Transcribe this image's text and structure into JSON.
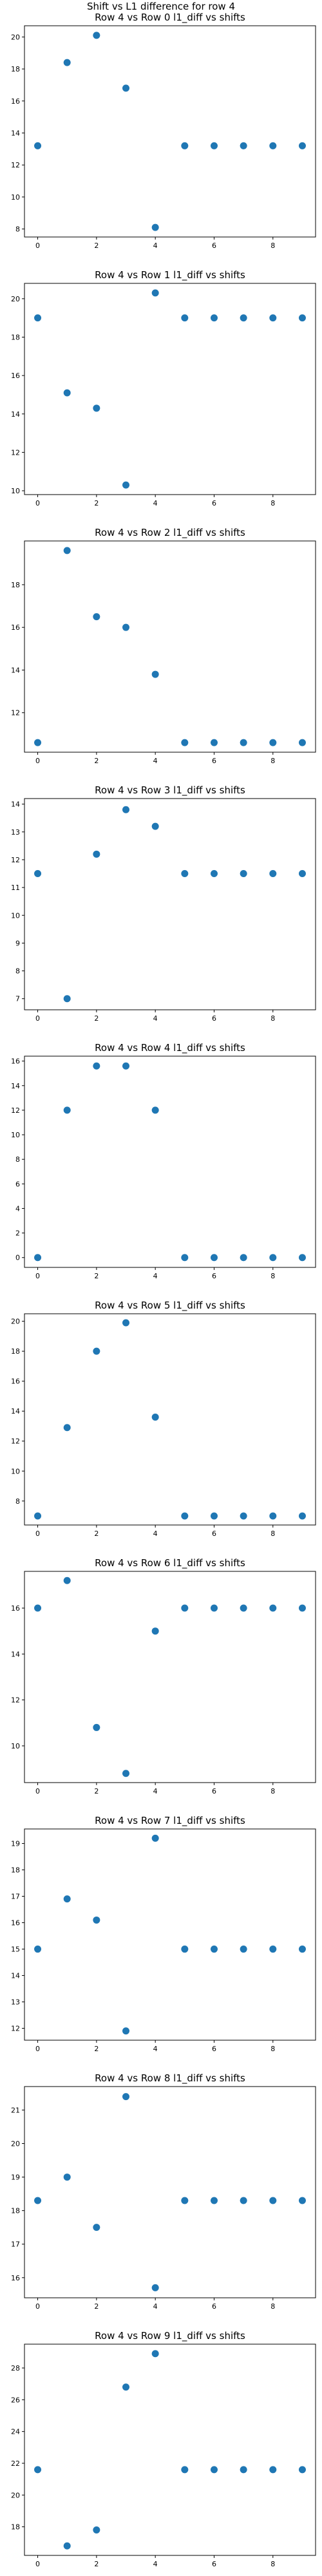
{
  "figure": {
    "suptitle": "Shift vs L1 difference for row 4",
    "marker_color": "#1f77b4"
  },
  "chart_data": [
    {
      "type": "scatter",
      "title": "Row 4 vs Row 0 l1_diff vs shifts",
      "x": [
        0,
        1,
        2,
        3,
        4,
        5,
        6,
        7,
        8,
        9
      ],
      "y": [
        13.2,
        18.4,
        20.1,
        16.8,
        8.1,
        13.2,
        13.2,
        13.2,
        13.2,
        13.2
      ],
      "xlim": [
        -0.45,
        9.45
      ],
      "ylim": [
        7.5,
        20.7
      ],
      "xticks": [
        0,
        2,
        4,
        6,
        8
      ],
      "yticks": [
        8,
        10,
        12,
        14,
        16,
        18,
        20
      ]
    },
    {
      "type": "scatter",
      "title": "Row 4 vs Row 1 l1_diff vs shifts",
      "x": [
        0,
        1,
        2,
        3,
        4,
        5,
        6,
        7,
        8,
        9
      ],
      "y": [
        19.0,
        15.1,
        14.3,
        10.3,
        20.3,
        19.0,
        19.0,
        19.0,
        19.0,
        19.0
      ],
      "xlim": [
        -0.45,
        9.45
      ],
      "ylim": [
        9.8,
        20.8
      ],
      "xticks": [
        0,
        2,
        4,
        6,
        8
      ],
      "yticks": [
        10,
        12,
        14,
        16,
        18,
        20
      ]
    },
    {
      "type": "scatter",
      "title": "Row 4 vs Row 2 l1_diff vs shifts",
      "x": [
        0,
        1,
        2,
        3,
        4,
        5,
        6,
        7,
        8,
        9
      ],
      "y": [
        10.6,
        19.6,
        16.5,
        16.0,
        13.8,
        10.6,
        10.6,
        10.6,
        10.6,
        10.6
      ],
      "xlim": [
        -0.45,
        9.45
      ],
      "ylim": [
        10.15,
        20.05
      ],
      "xticks": [
        0,
        2,
        4,
        6,
        8
      ],
      "yticks": [
        12,
        14,
        16,
        18
      ]
    },
    {
      "type": "scatter",
      "title": "Row 4 vs Row 3 l1_diff vs shifts",
      "x": [
        0,
        1,
        2,
        3,
        4,
        5,
        6,
        7,
        8,
        9
      ],
      "y": [
        11.5,
        7.0,
        12.2,
        13.8,
        13.2,
        11.5,
        11.5,
        11.5,
        11.5,
        11.5
      ],
      "xlim": [
        -0.45,
        9.45
      ],
      "ylim": [
        6.6,
        14.2
      ],
      "xticks": [
        0,
        2,
        4,
        6,
        8
      ],
      "yticks": [
        7,
        8,
        9,
        10,
        11,
        12,
        13,
        14
      ]
    },
    {
      "type": "scatter",
      "title": "Row 4 vs Row 4 l1_diff vs shifts",
      "x": [
        0,
        1,
        2,
        3,
        4,
        5,
        6,
        7,
        8,
        9
      ],
      "y": [
        0,
        12.0,
        15.6,
        15.6,
        12.0,
        0,
        0,
        0,
        0,
        0
      ],
      "xlim": [
        -0.45,
        9.45
      ],
      "ylim": [
        -0.8,
        16.4
      ],
      "xticks": [
        0,
        2,
        4,
        6,
        8
      ],
      "yticks": [
        0,
        2,
        4,
        6,
        8,
        10,
        12,
        14,
        16
      ]
    },
    {
      "type": "scatter",
      "title": "Row 4 vs Row 5 l1_diff vs shifts",
      "x": [
        0,
        1,
        2,
        3,
        4,
        5,
        6,
        7,
        8,
        9
      ],
      "y": [
        7.0,
        12.9,
        18.0,
        19.9,
        13.6,
        7.0,
        7.0,
        7.0,
        7.0,
        7.0
      ],
      "xlim": [
        -0.45,
        9.45
      ],
      "ylim": [
        6.4,
        20.5
      ],
      "xticks": [
        0,
        2,
        4,
        6,
        8
      ],
      "yticks": [
        8,
        10,
        12,
        14,
        16,
        18,
        20
      ]
    },
    {
      "type": "scatter",
      "title": "Row 4 vs Row 6 l1_diff vs shifts",
      "x": [
        0,
        1,
        2,
        3,
        4,
        5,
        6,
        7,
        8,
        9
      ],
      "y": [
        16.0,
        17.2,
        10.8,
        8.8,
        15.0,
        16.0,
        16.0,
        16.0,
        16.0,
        16.0
      ],
      "xlim": [
        -0.45,
        9.45
      ],
      "ylim": [
        8.4,
        17.6
      ],
      "xticks": [
        0,
        2,
        4,
        6,
        8
      ],
      "yticks": [
        10,
        12,
        14,
        16
      ]
    },
    {
      "type": "scatter",
      "title": "Row 4 vs Row 7 l1_diff vs shifts",
      "x": [
        0,
        1,
        2,
        3,
        4,
        5,
        6,
        7,
        8,
        9
      ],
      "y": [
        15.0,
        16.9,
        16.1,
        11.9,
        19.2,
        15.0,
        15.0,
        15.0,
        15.0,
        15.0
      ],
      "xlim": [
        -0.45,
        9.45
      ],
      "ylim": [
        11.55,
        19.55
      ],
      "xticks": [
        0,
        2,
        4,
        6,
        8
      ],
      "yticks": [
        12,
        13,
        14,
        15,
        16,
        17,
        18,
        19
      ]
    },
    {
      "type": "scatter",
      "title": "Row 4 vs Row 8 l1_diff vs shifts",
      "x": [
        0,
        1,
        2,
        3,
        4,
        5,
        6,
        7,
        8,
        9
      ],
      "y": [
        18.3,
        19.0,
        17.5,
        21.4,
        15.7,
        18.3,
        18.3,
        18.3,
        18.3,
        18.3
      ],
      "xlim": [
        -0.45,
        9.45
      ],
      "ylim": [
        15.4,
        21.7
      ],
      "xticks": [
        0,
        2,
        4,
        6,
        8
      ],
      "yticks": [
        16,
        17,
        18,
        19,
        20,
        21
      ]
    },
    {
      "type": "scatter",
      "title": "Row 4 vs Row 9 l1_diff vs shifts",
      "x": [
        0,
        1,
        2,
        3,
        4,
        5,
        6,
        7,
        8,
        9
      ],
      "y": [
        21.6,
        16.8,
        17.8,
        26.8,
        28.9,
        21.6,
        21.6,
        21.6,
        21.6,
        21.6
      ],
      "xlim": [
        -0.45,
        9.45
      ],
      "ylim": [
        16.2,
        29.5
      ],
      "xticks": [
        0,
        2,
        4,
        6,
        8
      ],
      "yticks": [
        18,
        20,
        22,
        24,
        26,
        28
      ]
    }
  ]
}
